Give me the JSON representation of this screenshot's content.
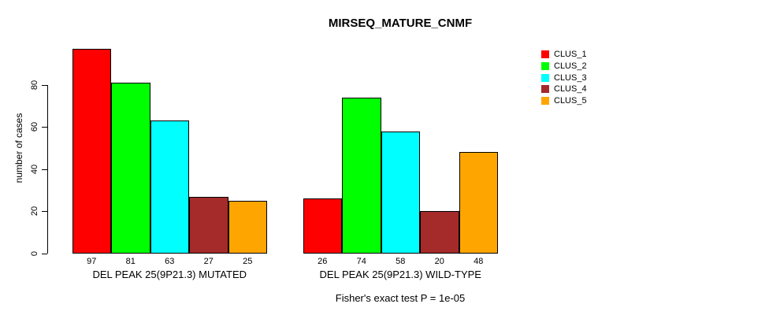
{
  "title": "MIRSEQ_MATURE_CNMF",
  "chart_data": {
    "type": "bar",
    "title": "MIRSEQ_MATURE_CNMF",
    "xlabel": "",
    "ylabel": "number of cases",
    "ylim": [
      0,
      100
    ],
    "yticks": [
      0,
      20,
      40,
      60,
      80
    ],
    "grid": false,
    "legend_position": "top-right-outside",
    "series_names": [
      "CLUS_1",
      "CLUS_2",
      "CLUS_3",
      "CLUS_4",
      "CLUS_5"
    ],
    "series_colors": [
      "#FF0000",
      "#00FF00",
      "#00FFFF",
      "#A52A2A",
      "#FFA500"
    ],
    "groups": [
      {
        "label": "DEL PEAK 25(9P21.3) MUTATED",
        "values": [
          97,
          81,
          63,
          27,
          25
        ]
      },
      {
        "label": "DEL PEAK 25(9P21.3) WILD-TYPE",
        "values": [
          26,
          74,
          58,
          20,
          48
        ]
      }
    ],
    "annotation": "Fisher's exact test P = 1e-05"
  },
  "legend": {
    "items": [
      {
        "label": "CLUS_1",
        "color": "#FF0000"
      },
      {
        "label": "CLUS_2",
        "color": "#00FF00"
      },
      {
        "label": "CLUS_3",
        "color": "#00FFFF"
      },
      {
        "label": "CLUS_4",
        "color": "#A52A2A"
      },
      {
        "label": "CLUS_5",
        "color": "#FFA500"
      }
    ]
  }
}
